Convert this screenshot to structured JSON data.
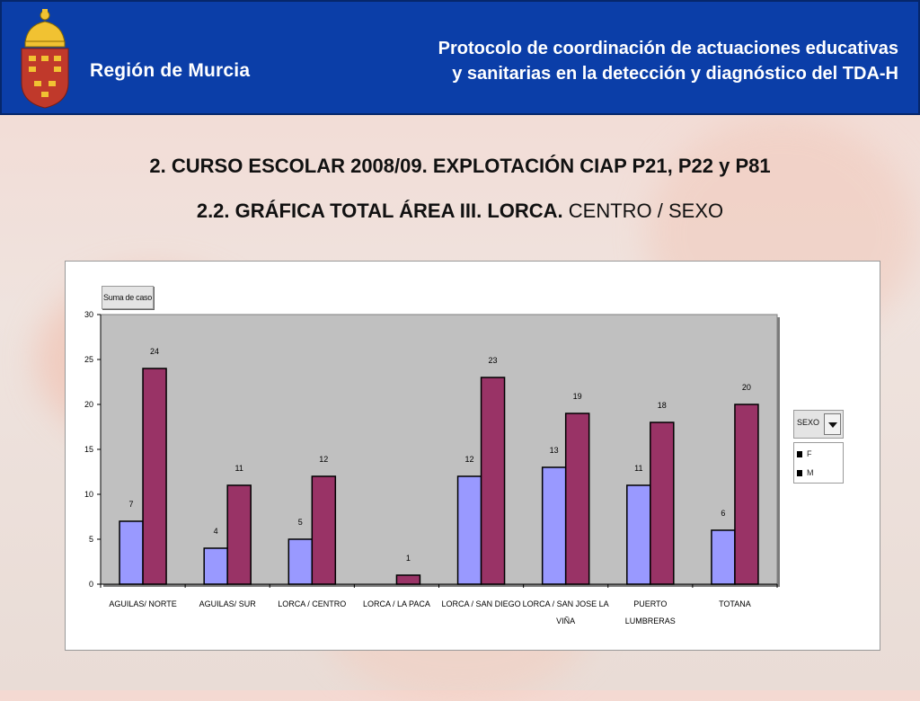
{
  "header": {
    "logo_text": "Región de Murcia",
    "title_line1": "Protocolo de coordinación de actuaciones educativas",
    "title_line2": "y sanitarias en la detección y diagnóstico del TDA-H"
  },
  "slide": {
    "title1": "2. CURSO ESCOLAR 2008/09. EXPLOTACIÓN CIAP P21, P22 y P81",
    "title2_bold": "2.2. GRÁFICA TOTAL ÁREA III. LORCA.",
    "title2_rest": " CENTRO / SEXO"
  },
  "chart_data": {
    "type": "bar",
    "field_button": "Suma de caso",
    "legend_field": "SEXO",
    "categories": [
      "AGUILAS/ NORTE",
      "AGUILAS/ SUR",
      "LORCA / CENTRO",
      "LORCA / LA PACA",
      "LORCA / SAN DIEGO",
      "LORCA / SAN JOSE LA VIÑA",
      "PUERTO LUMBRERAS",
      "TOTANA"
    ],
    "category_lines": [
      [
        "AGUILAS/ NORTE"
      ],
      [
        "AGUILAS/ SUR"
      ],
      [
        "LORCA / CENTRO"
      ],
      [
        "LORCA / LA PACA"
      ],
      [
        "LORCA / SAN DIEGO"
      ],
      [
        "LORCA / SAN JOSE LA",
        "VIÑA"
      ],
      [
        "PUERTO",
        "LUMBRERAS"
      ],
      [
        "TOTANA"
      ]
    ],
    "series": [
      {
        "name": "F",
        "color": "#9999ff",
        "values": [
          7,
          4,
          5,
          null,
          12,
          13,
          11,
          6
        ]
      },
      {
        "name": "M",
        "color": "#993366",
        "values": [
          24,
          11,
          12,
          1,
          23,
          19,
          18,
          20
        ]
      }
    ],
    "ylim": [
      0,
      30
    ],
    "yticks": [
      0,
      5,
      10,
      15,
      20,
      25,
      30
    ],
    "grid": false,
    "plot_background": "#c0c0c0",
    "legend_position": "right"
  }
}
